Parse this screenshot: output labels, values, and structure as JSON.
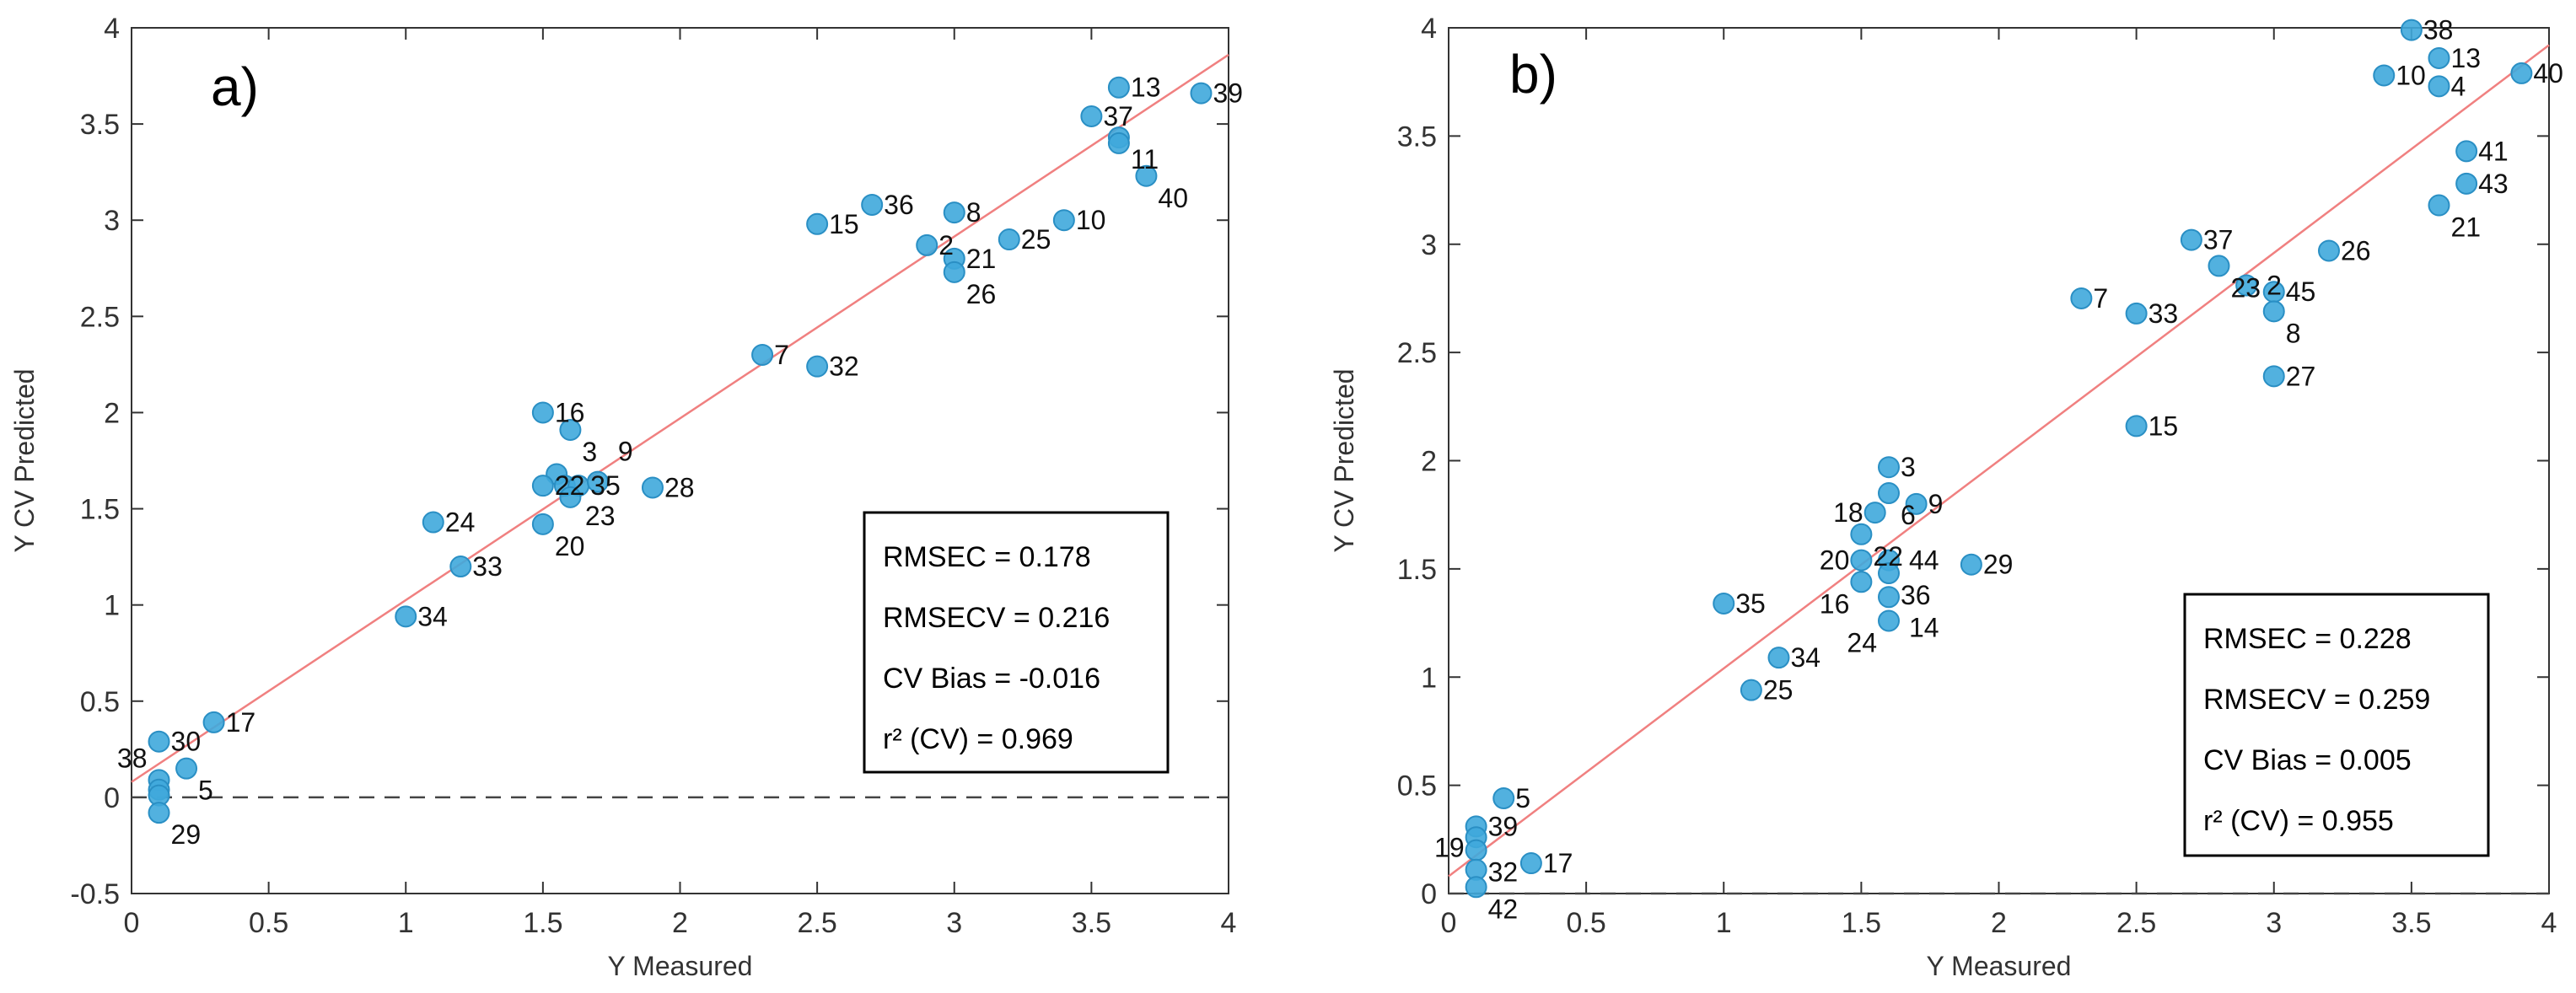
{
  "chart_data": [
    {
      "type": "scatter",
      "panel_label": "a)",
      "xlabel": "Y Measured",
      "ylabel": "Y CV Predicted",
      "xlim": [
        0,
        4
      ],
      "ylim": [
        -0.5,
        4
      ],
      "xticks": [
        "0",
        "0.5",
        "1",
        "1.5",
        "2",
        "2.5",
        "3",
        "3.5",
        "4"
      ],
      "yticks": [
        "-0.5",
        "0",
        "0.5",
        "1",
        "1.5",
        "2",
        "2.5",
        "3",
        "3.5",
        "4"
      ],
      "fit_line": [
        [
          0,
          0.08
        ],
        [
          4,
          3.86
        ]
      ],
      "stats": [
        "RMSEC = 0.178",
        "RMSECV = 0.216",
        "CV Bias = -0.016",
        "r² (CV) = 0.969"
      ],
      "point_color": "#3fa9dc",
      "line_color": "#f08080",
      "points": [
        {
          "l": "13",
          "x": 3.6,
          "y": 3.69
        },
        {
          "l": "39",
          "x": 3.9,
          "y": 3.66
        },
        {
          "l": "37",
          "x": 3.5,
          "y": 3.54
        },
        {
          "l": "11",
          "x": 3.6,
          "y": 3.43
        },
        {
          "l": "",
          "x": 3.6,
          "y": 3.4
        },
        {
          "l": "40",
          "x": 3.7,
          "y": 3.23
        },
        {
          "l": "36",
          "x": 2.7,
          "y": 3.08
        },
        {
          "l": "8",
          "x": 3.0,
          "y": 3.04
        },
        {
          "l": "15",
          "x": 2.5,
          "y": 2.98
        },
        {
          "l": "10",
          "x": 3.4,
          "y": 3.0
        },
        {
          "l": "25",
          "x": 3.2,
          "y": 2.9
        },
        {
          "l": "2",
          "x": 2.9,
          "y": 2.87
        },
        {
          "l": "21",
          "x": 3.0,
          "y": 2.8
        },
        {
          "l": "26",
          "x": 3.0,
          "y": 2.73
        },
        {
          "l": "7",
          "x": 2.3,
          "y": 2.3
        },
        {
          "l": "32",
          "x": 2.5,
          "y": 2.24
        },
        {
          "l": "16",
          "x": 1.5,
          "y": 2.0
        },
        {
          "l": "3",
          "x": 1.6,
          "y": 1.91
        },
        {
          "l": "",
          "x": 1.55,
          "y": 1.68
        },
        {
          "l": "22",
          "x": 1.5,
          "y": 1.62
        },
        {
          "l": "23",
          "x": 1.58,
          "y": 1.62
        },
        {
          "l": "35",
          "x": 1.63,
          "y": 1.62
        },
        {
          "l": "9",
          "x": 1.7,
          "y": 1.64
        },
        {
          "l": "",
          "x": 1.6,
          "y": 1.56
        },
        {
          "l": "28",
          "x": 1.9,
          "y": 1.61
        },
        {
          "l": "24",
          "x": 1.1,
          "y": 1.43
        },
        {
          "l": "20",
          "x": 1.5,
          "y": 1.42
        },
        {
          "l": "33",
          "x": 1.2,
          "y": 1.2
        },
        {
          "l": "34",
          "x": 1.0,
          "y": 0.94
        },
        {
          "l": "17",
          "x": 0.3,
          "y": 0.39
        },
        {
          "l": "30",
          "x": 0.1,
          "y": 0.29
        },
        {
          "l": "5",
          "x": 0.2,
          "y": 0.15
        },
        {
          "l": "38",
          "x": 0.1,
          "y": 0.09
        },
        {
          "l": "",
          "x": 0.1,
          "y": 0.04
        },
        {
          "l": "",
          "x": 0.1,
          "y": 0.01
        },
        {
          "l": "29",
          "x": 0.1,
          "y": -0.08
        }
      ]
    },
    {
      "type": "scatter",
      "panel_label": "b)",
      "xlabel": "Y Measured",
      "ylabel": "Y CV Predicted",
      "xlim": [
        0,
        4
      ],
      "ylim": [
        0,
        4
      ],
      "xticks": [
        "0",
        "0.5",
        "1",
        "1.5",
        "2",
        "2.5",
        "3",
        "3.5",
        "4"
      ],
      "yticks": [
        "0",
        "0.5",
        "1",
        "1.5",
        "2",
        "2.5",
        "3",
        "3.5",
        "4"
      ],
      "fit_line": [
        [
          0,
          0.08
        ],
        [
          4,
          3.92
        ]
      ],
      "stats": [
        "RMSEC = 0.228",
        "RMSECV = 0.259",
        "CV Bias = 0.005",
        "r² (CV) = 0.955"
      ],
      "point_color": "#3fa9dc",
      "line_color": "#f08080",
      "points": [
        {
          "l": "38",
          "x": 3.5,
          "y": 3.99
        },
        {
          "l": "13",
          "x": 3.6,
          "y": 3.86
        },
        {
          "l": "10",
          "x": 3.4,
          "y": 3.78
        },
        {
          "l": "4",
          "x": 3.6,
          "y": 3.73
        },
        {
          "l": "40",
          "x": 3.9,
          "y": 3.79
        },
        {
          "l": "41",
          "x": 3.7,
          "y": 3.43
        },
        {
          "l": "43",
          "x": 3.7,
          "y": 3.28
        },
        {
          "l": "21",
          "x": 3.6,
          "y": 3.18
        },
        {
          "l": "37",
          "x": 2.7,
          "y": 3.02
        },
        {
          "l": "26",
          "x": 3.2,
          "y": 2.97
        },
        {
          "l": "23",
          "x": 2.8,
          "y": 2.9
        },
        {
          "l": "2",
          "x": 2.9,
          "y": 2.81
        },
        {
          "l": "45",
          "x": 3.0,
          "y": 2.78
        },
        {
          "l": "8",
          "x": 3.0,
          "y": 2.69
        },
        {
          "l": "7",
          "x": 2.3,
          "y": 2.75
        },
        {
          "l": "33",
          "x": 2.5,
          "y": 2.68
        },
        {
          "l": "27",
          "x": 3.0,
          "y": 2.39
        },
        {
          "l": "15",
          "x": 2.5,
          "y": 2.16
        },
        {
          "l": "3",
          "x": 1.6,
          "y": 1.97
        },
        {
          "l": "6",
          "x": 1.6,
          "y": 1.85
        },
        {
          "l": "9",
          "x": 1.7,
          "y": 1.8
        },
        {
          "l": "18",
          "x": 1.55,
          "y": 1.76
        },
        {
          "l": "22",
          "x": 1.5,
          "y": 1.66
        },
        {
          "l": "20",
          "x": 1.5,
          "y": 1.54
        },
        {
          "l": "44",
          "x": 1.6,
          "y": 1.54
        },
        {
          "l": "36",
          "x": 1.6,
          "y": 1.48
        },
        {
          "l": "16",
          "x": 1.5,
          "y": 1.44
        },
        {
          "l": "14",
          "x": 1.6,
          "y": 1.37
        },
        {
          "l": "24",
          "x": 1.6,
          "y": 1.26
        },
        {
          "l": "29",
          "x": 1.9,
          "y": 1.52
        },
        {
          "l": "35",
          "x": 1.0,
          "y": 1.34
        },
        {
          "l": "34",
          "x": 1.2,
          "y": 1.09
        },
        {
          "l": "25",
          "x": 1.1,
          "y": 0.94
        },
        {
          "l": "5",
          "x": 0.2,
          "y": 0.44
        },
        {
          "l": "39",
          "x": 0.1,
          "y": 0.31
        },
        {
          "l": "",
          "x": 0.1,
          "y": 0.26
        },
        {
          "l": "32",
          "x": 0.1,
          "y": 0.2
        },
        {
          "l": "19",
          "x": 0.1,
          "y": 0.11
        },
        {
          "l": "17",
          "x": 0.3,
          "y": 0.14
        },
        {
          "l": "42",
          "x": 0.1,
          "y": 0.03
        }
      ]
    }
  ]
}
